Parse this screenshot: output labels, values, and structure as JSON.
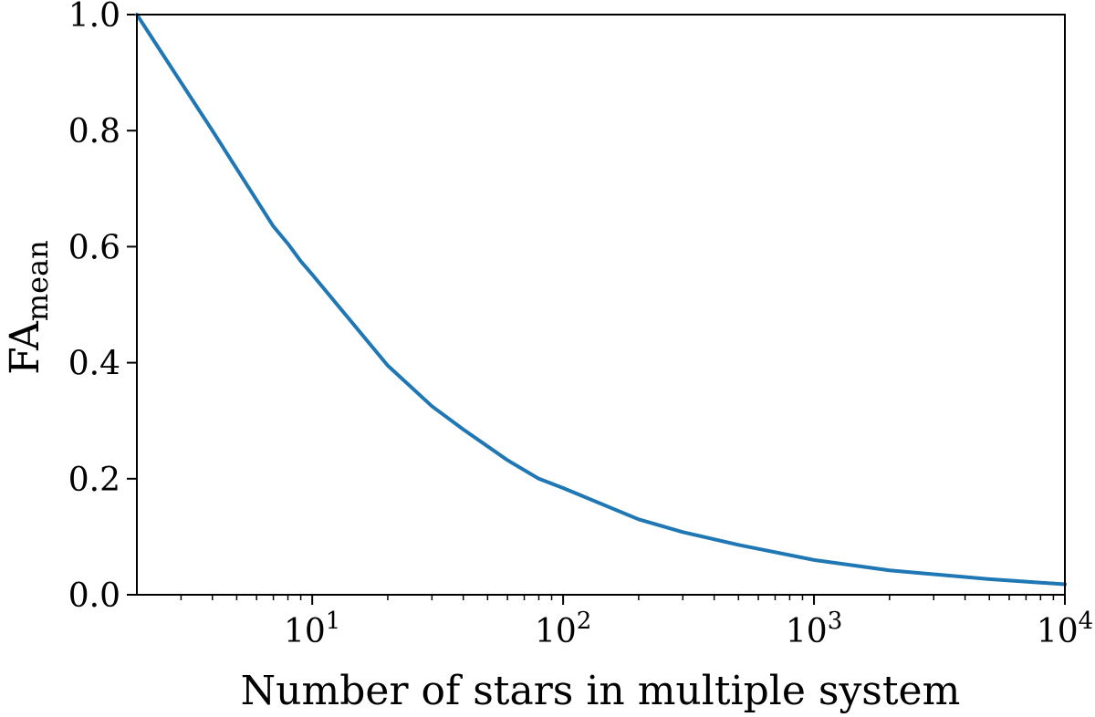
{
  "chart_data": {
    "type": "line",
    "title": "",
    "xlabel": "Number of stars in multiple system",
    "ylabel": {
      "main": "FA",
      "subscript": "mean"
    },
    "x_scale": "log",
    "xlim": [
      2,
      10000
    ],
    "ylim": [
      0.0,
      1.0
    ],
    "grid": false,
    "legend": "none",
    "x_ticks": [
      {
        "value": 10,
        "base": "10",
        "exponent": "1"
      },
      {
        "value": 100,
        "base": "10",
        "exponent": "2"
      },
      {
        "value": 1000,
        "base": "10",
        "exponent": "3"
      },
      {
        "value": 10000,
        "base": "10",
        "exponent": "4"
      }
    ],
    "y_ticks": [
      {
        "value": 0.0,
        "label": "0.0"
      },
      {
        "value": 0.2,
        "label": "0.2"
      },
      {
        "value": 0.4,
        "label": "0.4"
      },
      {
        "value": 0.6,
        "label": "0.6"
      },
      {
        "value": 0.8,
        "label": "0.8"
      },
      {
        "value": 1.0,
        "label": "1.0"
      }
    ],
    "series": [
      {
        "color": "#1f77b4",
        "x": [
          2,
          4,
          7,
          8,
          9,
          10,
          20,
          30,
          40,
          60,
          80,
          100,
          200,
          300,
          500,
          1000,
          2000,
          5000,
          10000
        ],
        "y": [
          1.0,
          0.8,
          0.635,
          0.605,
          0.575,
          0.552,
          0.395,
          0.325,
          0.285,
          0.232,
          0.2,
          0.184,
          0.13,
          0.108,
          0.086,
          0.06,
          0.042,
          0.027,
          0.018
        ]
      }
    ]
  }
}
